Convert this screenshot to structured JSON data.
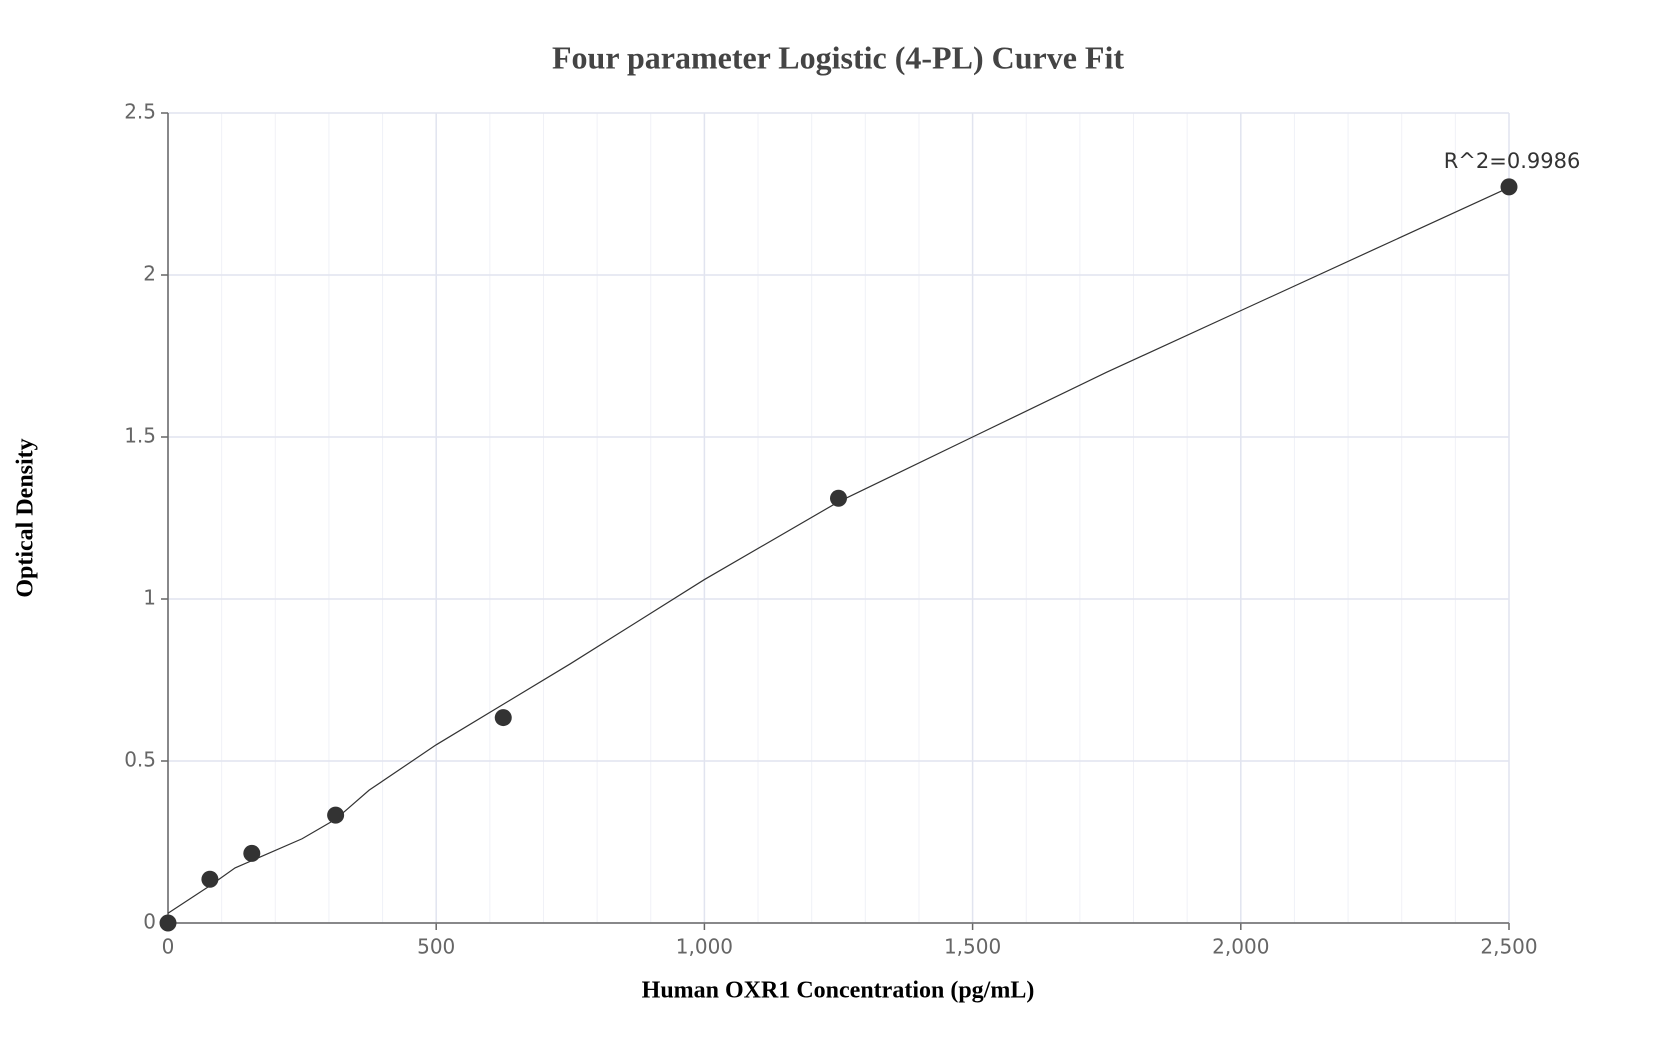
{
  "chart_data": {
    "type": "scatter",
    "title": "Four parameter Logistic (4-PL) Curve Fit",
    "x_label": "Human OXR1 Concentration (pg/mL)",
    "y_label": "Optical Density",
    "annotation": "R^2=0.9986",
    "xlim": [
      0,
      2500
    ],
    "ylim": [
      0,
      2.5
    ],
    "xticks": [
      0,
      500,
      {
        "value": 1000,
        "label": "1,000"
      },
      {
        "value": 1500,
        "label": "1,500"
      },
      {
        "value": 2000,
        "label": "2,000"
      },
      {
        "value": 2500,
        "label": "2,500"
      }
    ],
    "yticks": [
      0,
      0.5,
      1,
      1.5,
      2,
      2.5
    ],
    "x_minor_step": 100,
    "grid": true,
    "series": [
      {
        "kind": "points",
        "color": "#333333",
        "x": [
          0,
          78.125,
          156.25,
          312.5,
          625,
          1250,
          2500
        ],
        "values": [
          0,
          0.135,
          0.215,
          0.333,
          0.634,
          1.311,
          2.272
        ]
      },
      {
        "kind": "curve",
        "color": "#333333",
        "x": [
          0,
          78.125,
          125,
          250,
          312.5,
          375,
          500,
          750,
          1000,
          1250,
          1500,
          1750,
          2000,
          2250,
          2500
        ],
        "values": [
          0.03,
          0.115,
          0.17,
          0.26,
          0.32,
          0.41,
          0.55,
          0.8,
          1.06,
          1.3,
          1.5,
          1.7,
          1.89,
          2.08,
          2.27
        ]
      }
    ]
  }
}
